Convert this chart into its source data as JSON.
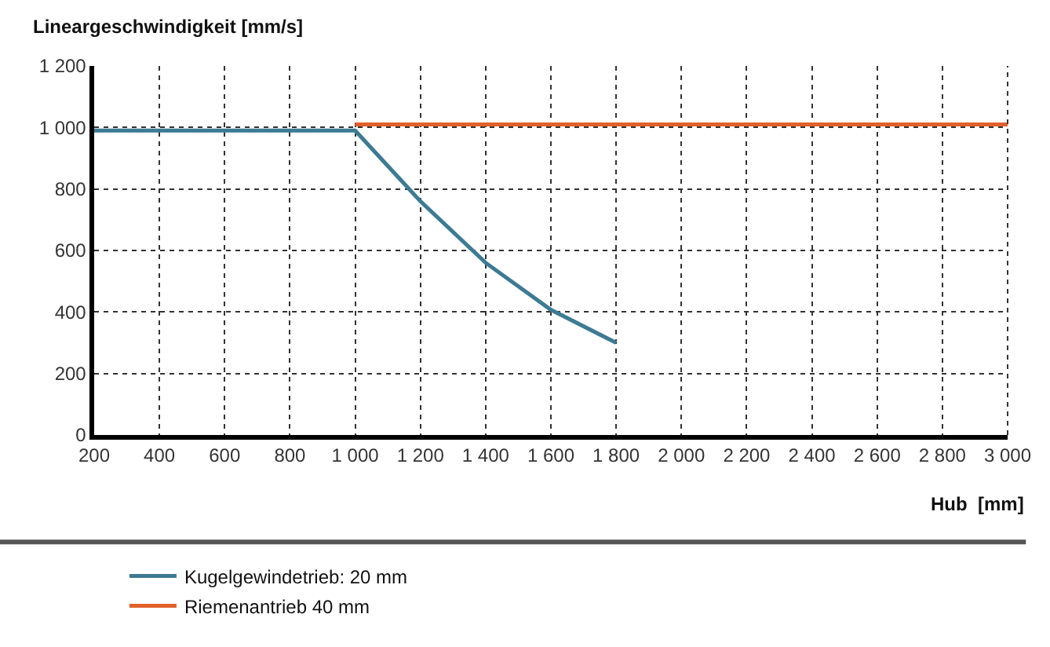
{
  "chart_data": {
    "type": "line",
    "xlabel": "Hub  [mm]",
    "ylabel": "Lineargeschwindigkeit [mm/s]",
    "series": [
      {
        "name": "Kugelgewindetrieb: 20 mm",
        "color": "#3d7a93",
        "x": [
          200,
          1000,
          1200,
          1400,
          1600,
          1800
        ],
        "values": [
          990,
          990,
          760,
          560,
          407,
          300
        ]
      },
      {
        "name": "Riemenantrieb 40 mm",
        "color": "#e2612a",
        "x": [
          1000,
          3000
        ],
        "values": [
          1010,
          1010
        ]
      }
    ],
    "xlim": [
      200,
      3000
    ],
    "xticks": [
      200,
      400,
      600,
      800,
      {
        "value": 1000,
        "label": "1 000"
      },
      {
        "value": 1200,
        "label": "1 200"
      },
      {
        "value": 1400,
        "label": "1 400"
      },
      {
        "value": 1600,
        "label": "1 600"
      },
      {
        "value": 1800,
        "label": "1 800"
      },
      {
        "value": 2000,
        "label": "2 000"
      },
      {
        "value": 2200,
        "label": "2 200"
      },
      {
        "value": 2400,
        "label": "2 400"
      },
      {
        "value": 2600,
        "label": "2 600"
      },
      {
        "value": 2800,
        "label": "2 800"
      },
      {
        "value": 3000,
        "label": "3 000"
      }
    ],
    "ylim": [
      0,
      1200
    ],
    "yticks": [
      0,
      200,
      400,
      600,
      800,
      {
        "value": 1000,
        "label": "1 000"
      },
      {
        "value": 1200,
        "label": "1 200"
      }
    ],
    "grid": true,
    "legend": "bottom",
    "marker": "none",
    "line_style": "solid"
  }
}
